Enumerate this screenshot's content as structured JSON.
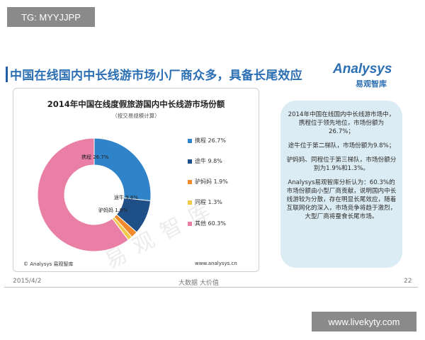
{
  "overlay": {
    "tg_label": "TG: MYYJJPP",
    "site_label": "www.livekyty.com"
  },
  "slide": {
    "title": "中国在线国内中长线游市场小厂商众多，具备长尾效应",
    "logo_main": "Analysys",
    "logo_sub": "易观智库",
    "watermark": "易观智库",
    "footer_date": "2015/4/2",
    "footer_mid": "大数据   大价值",
    "page_number": "22"
  },
  "chart_data": {
    "type": "pie",
    "title": "2014年中国在线度假旅游国内中长线游市场份额",
    "subtitle": "（按交易规模计算）",
    "slices": [
      {
        "name": "携程",
        "value": 26.7,
        "label": "携程 26.7%",
        "color": "#2f83c8"
      },
      {
        "name": "途牛",
        "value": 9.8,
        "label": "途牛 9.8%",
        "color": "#1e4f86"
      },
      {
        "name": "驴妈妈",
        "value": 1.9,
        "label": "驴妈妈 1.9%",
        "color": "#f08a2c"
      },
      {
        "name": "同程",
        "value": 1.3,
        "label": "同程 1.3%",
        "color": "#f2c94c"
      },
      {
        "name": "其他",
        "value": 60.3,
        "label": "其他 60.3%",
        "color": "#ea7fa6"
      }
    ],
    "slice_labels": [
      "携程 26.7%",
      "途牛 9.8%",
      "驴妈妈 1.9%"
    ],
    "footer_left": "© Analysys 易观智库",
    "footer_right": "www.analysys.cn"
  },
  "analysis": {
    "paragraphs": [
      "2014年中国在线国内中长线游市场中，携程位于领先地位，市场份额为26.7%；",
      "途牛位于第二梯队，市场份额为9.8%；",
      "驴妈妈、同程位于第三梯队，市场份额分别为1.9%和1.3%。",
      "Analysys易观智库分析认为：60.3%的市场份额由小型厂商贡献，说明国内中长线游较为分散，存在明显长尾效应，随着互联网化的深入，市场竞争将趋于激烈，大型厂商将蚕食长尾市场。"
    ]
  }
}
